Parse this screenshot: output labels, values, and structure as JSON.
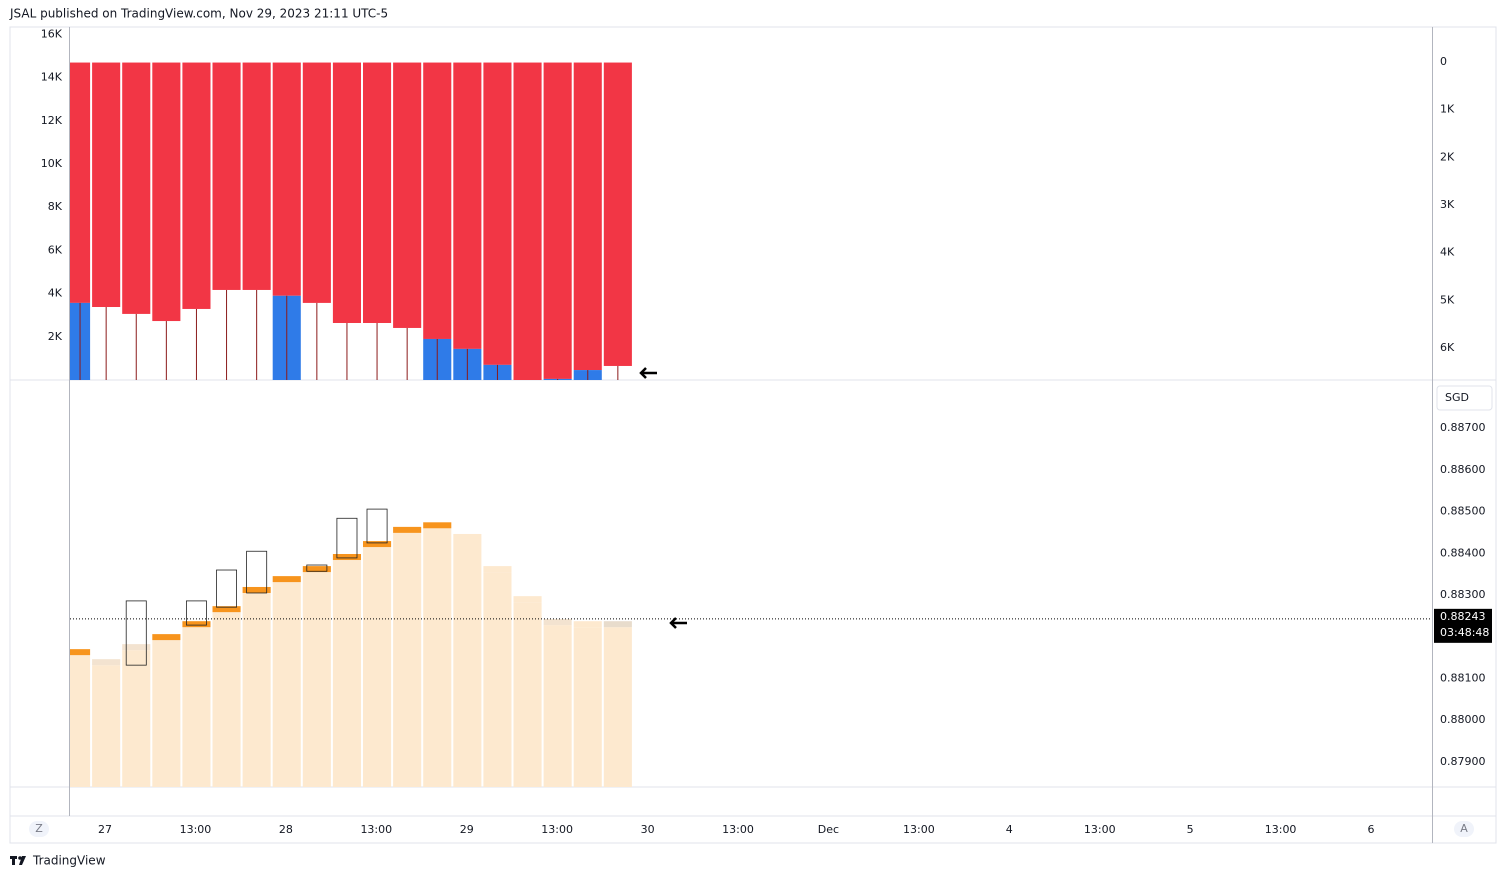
{
  "header": {
    "text": "JSAL published on TradingView.com, Nov 29, 2023 21:11 UTC-5"
  },
  "footer": {
    "brand": "TradingView"
  },
  "buttons": {
    "left": "Z",
    "right": "A"
  },
  "time_axis": {
    "labels": [
      "27",
      "13:00",
      "28",
      "13:00",
      "29",
      "13:00",
      "30",
      "13:00",
      "Dec",
      "13:00",
      "4",
      "13:00",
      "5",
      "13:00",
      "6"
    ]
  },
  "chart_data": [
    {
      "type": "range-bar",
      "ylim": [
        0,
        16.3
      ],
      "yticks": [
        {
          "value": 2,
          "label": "2K"
        },
        {
          "value": 4,
          "label": "4K"
        },
        {
          "value": 6,
          "label": "6K"
        },
        {
          "value": 8,
          "label": "8K"
        },
        {
          "value": 10,
          "label": "10K"
        },
        {
          "value": 12,
          "label": "12K"
        },
        {
          "value": 14,
          "label": "14K"
        },
        {
          "value": 16,
          "label": "16K"
        }
      ],
      "y2lim": [
        6.67,
        -0.71
      ],
      "y2ticks": [
        0,
        {
          "value": 1,
          "label": "1K"
        },
        {
          "value": 2,
          "label": "2K"
        },
        {
          "value": 3,
          "label": "3K"
        },
        {
          "value": 4,
          "label": "4K"
        },
        {
          "value": 5,
          "label": "5K"
        },
        {
          "value": 6,
          "label": "6K"
        }
      ],
      "series": [
        {
          "color": "#f23645",
          "wick_color": "#8b1a1a",
          "low": [
            3.57,
            3.38,
            3.06,
            2.73,
            3.29,
            4.17,
            4.17,
            3.9,
            3.57,
            2.64,
            2.64,
            2.41,
            1.9,
            1.44,
            0.7,
            0,
            0.05,
            0.46,
            0.65
          ],
          "high": [
            14.7,
            14.7,
            14.7,
            14.7,
            14.7,
            14.7,
            14.7,
            14.7,
            14.7,
            14.7,
            14.7,
            14.7,
            14.7,
            14.7,
            14.7,
            14.7,
            14.7,
            14.7,
            14.7
          ]
        },
        {
          "color": "#2f7be8",
          "values": [
            3.57,
            0,
            0,
            0,
            0,
            0,
            0,
            3.9,
            0,
            0,
            0,
            0,
            1.9,
            1.44,
            0.7,
            0,
            0.05,
            0.46,
            0
          ]
        }
      ]
    },
    {
      "type": "price-bar",
      "currency": "SGD",
      "ylim": [
        0.8784,
        0.88813
      ],
      "yticks": [
        {
          "value": 0.879,
          "label": "0.87900"
        },
        {
          "value": 0.88,
          "label": "0.88000"
        },
        {
          "value": 0.881,
          "label": "0.88100"
        },
        {
          "value": 0.883,
          "label": "0.88300"
        },
        {
          "value": 0.884,
          "label": "0.88400"
        },
        {
          "value": 0.885,
          "label": "0.88500"
        },
        {
          "value": 0.886,
          "label": "0.88600"
        },
        {
          "value": 0.887,
          "label": "0.88700"
        }
      ],
      "last_price": 0.88243,
      "countdown": "03:48:48",
      "series": [
        {
          "color": "#fde9cf",
          "values": [
            0.88156,
            0.88132,
            0.88168,
            0.88192,
            0.88223,
            0.88259,
            0.88305,
            0.88331,
            0.88355,
            0.88384,
            0.88415,
            0.88449,
            0.8846,
            0.88432,
            0.88355,
            0.88283,
            0.88228,
            0.88223,
            0.88223
          ],
          "strip_colors": [
            "#f7941d",
            "#f3e3d0",
            "#f3e3d0",
            "#f7941d",
            "#f7941d",
            "#f7941d",
            "#f7941d",
            "#f7941d",
            "#f7941d",
            "#f7941d",
            "#f7941d",
            "#f7941d",
            "#f7941d",
            "#fde9cf",
            "#fde9cf",
            "#fde9cf",
            "#f3e3d0",
            "#fde9cf",
            "#e8dccc"
          ]
        },
        {
          "color": "#222222",
          "low": [
            null,
            null,
            0.88132,
            null,
            0.88228,
            0.88271,
            0.88305,
            null,
            0.88357,
            0.88389,
            0.88425,
            null,
            null,
            null,
            null,
            null,
            null,
            null,
            null
          ],
          "high": [
            null,
            null,
            0.88286,
            null,
            0.88286,
            0.8836,
            0.88405,
            null,
            0.88372,
            0.88484,
            0.88506,
            null,
            null,
            null,
            null,
            null,
            null,
            null,
            null
          ]
        }
      ]
    }
  ]
}
